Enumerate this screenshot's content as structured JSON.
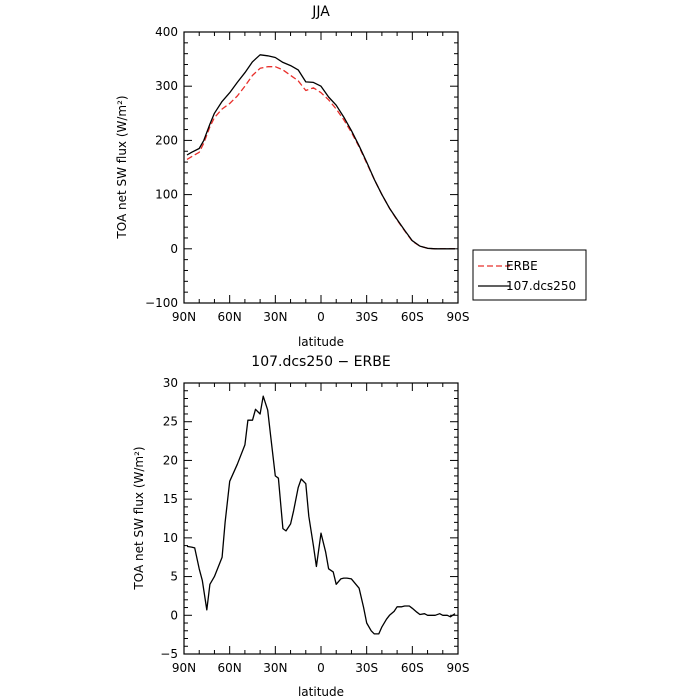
{
  "chart_data": [
    {
      "type": "line",
      "title": "JJA",
      "xlabel": "latitude",
      "ylabel": "TOA net SW flux (W/m²)",
      "xlim": [
        90,
        -90
      ],
      "ylim": [
        -100,
        400
      ],
      "xtick_values": [
        90,
        60,
        30,
        0,
        -30,
        -60,
        -90
      ],
      "xtick_labels": [
        "90N",
        "60N",
        "30N",
        "0",
        "30S",
        "60S",
        "90S"
      ],
      "ytick_values": [
        -100,
        0,
        100,
        200,
        300,
        400
      ],
      "ytick_labels": [
        "−100",
        "0",
        "100",
        "200",
        "300",
        "400"
      ],
      "legend": {
        "placement": "right-outside"
      },
      "series": [
        {
          "name": "ERBE",
          "color": "#e8302c",
          "dash": true,
          "x": [
            88,
            85,
            80,
            77,
            73,
            70,
            65,
            60,
            55,
            50,
            45,
            40,
            35,
            30,
            25,
            20,
            15,
            10,
            5,
            0,
            -5,
            -10,
            -15,
            -20,
            -25,
            -30,
            -35,
            -40,
            -45,
            -50,
            -55,
            -60,
            -65,
            -70,
            -75,
            -80,
            -85,
            -88
          ],
          "values": [
            165,
            170,
            178,
            195,
            225,
            242,
            258,
            268,
            282,
            300,
            320,
            333,
            336,
            336,
            330,
            320,
            310,
            292,
            297,
            288,
            275,
            258,
            238,
            215,
            188,
            158,
            128,
            100,
            75,
            53,
            33,
            14,
            5,
            1,
            0,
            0,
            0,
            0
          ]
        },
        {
          "name": "107.dcs250",
          "color": "#000000",
          "dash": false,
          "x": [
            88,
            85,
            80,
            77,
            73,
            70,
            65,
            60,
            55,
            50,
            45,
            40,
            35,
            30,
            25,
            20,
            15,
            10,
            5,
            0,
            -5,
            -10,
            -15,
            -20,
            -25,
            -30,
            -35,
            -40,
            -45,
            -50,
            -55,
            -60,
            -65,
            -70,
            -75,
            -80,
            -85,
            -88
          ],
          "values": [
            173,
            178,
            185,
            200,
            230,
            250,
            272,
            288,
            307,
            325,
            345,
            358,
            356,
            353,
            344,
            338,
            330,
            308,
            307,
            300,
            280,
            265,
            243,
            218,
            190,
            160,
            128,
            100,
            75,
            54,
            34,
            15,
            5,
            1,
            0,
            0,
            0,
            0
          ]
        }
      ]
    },
    {
      "type": "line",
      "title": "107.dcs250 − ERBE",
      "xlabel": "latitude",
      "ylabel": "TOA net SW flux (W/m²)",
      "xlim": [
        90,
        -90
      ],
      "ylim": [
        -5,
        30
      ],
      "xtick_values": [
        90,
        60,
        30,
        0,
        -30,
        -60,
        -90
      ],
      "xtick_labels": [
        "90N",
        "60N",
        "30N",
        "0",
        "30S",
        "60S",
        "90S"
      ],
      "ytick_values": [
        -5,
        0,
        5,
        10,
        15,
        20,
        25,
        30
      ],
      "ytick_labels": [
        "−5",
        "0",
        "5",
        "10",
        "15",
        "20",
        "25",
        "30"
      ],
      "series": [
        {
          "color": "#000000",
          "x": [
            88,
            85,
            83,
            80,
            78,
            75,
            73,
            70,
            65,
            63,
            60,
            55,
            50,
            48,
            45,
            43,
            40,
            38,
            35,
            33,
            30,
            28,
            25,
            23,
            20,
            18,
            15,
            13,
            10,
            8,
            5,
            3,
            0,
            -3,
            -5,
            -8,
            -10,
            -13,
            -15,
            -17,
            -20,
            -25,
            -28,
            -30,
            -33,
            -35,
            -38,
            -40,
            -43,
            -45,
            -48,
            -50,
            -53,
            -55,
            -58,
            -60,
            -63,
            -65,
            -68,
            -70,
            -73,
            -75,
            -78,
            -80,
            -83,
            -85,
            -88
          ],
          "values": [
            8.9,
            8.8,
            8.7,
            6.0,
            4.5,
            0.7,
            4.0,
            5.0,
            7.5,
            12.0,
            17.3,
            19.5,
            22.0,
            25.2,
            25.2,
            26.6,
            26.0,
            28.3,
            26.5,
            23.0,
            18.0,
            17.7,
            11.2,
            10.9,
            11.8,
            13.5,
            16.5,
            17.6,
            17.0,
            12.8,
            9.0,
            6.3,
            10.6,
            8.2,
            6.0,
            5.6,
            4.0,
            4.7,
            4.8,
            4.8,
            4.7,
            3.5,
            1.0,
            -1.0,
            -2.0,
            -2.4,
            -2.4,
            -1.5,
            -0.5,
            0.0,
            0.5,
            1.1,
            1.1,
            1.2,
            1.2,
            0.9,
            0.4,
            0.1,
            0.2,
            0.0,
            0.0,
            0.0,
            0.2,
            0.0,
            0.0,
            -0.2,
            0.2
          ]
        }
      ]
    }
  ]
}
